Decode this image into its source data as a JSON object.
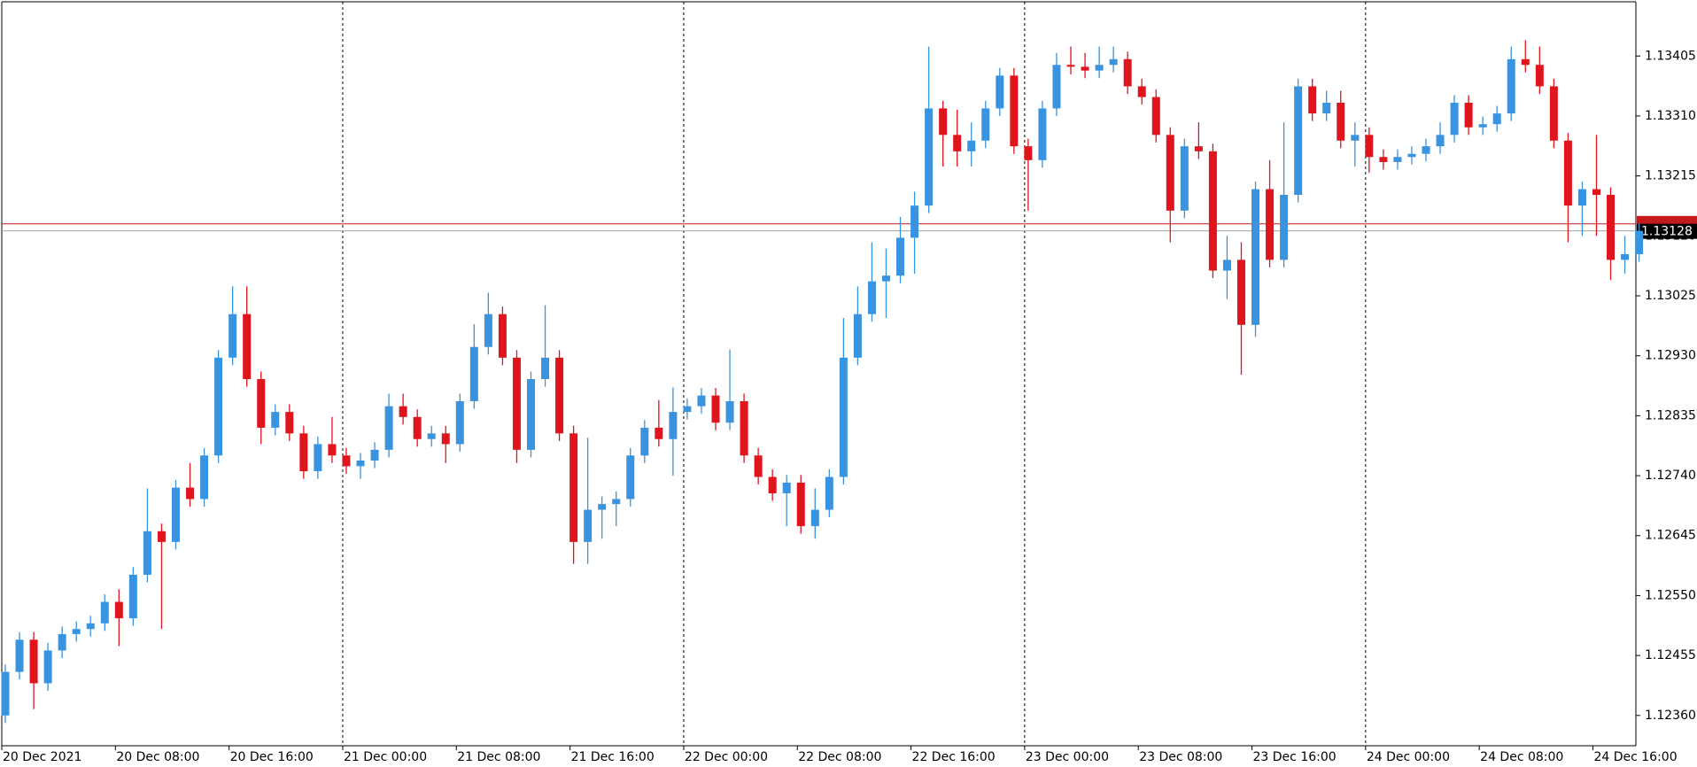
{
  "chart_data": {
    "type": "candlestick",
    "categories": [
      "20 Dec 2021",
      null,
      null,
      null,
      null,
      null,
      null,
      null,
      "20 Dec 08:00",
      null,
      null,
      null,
      null,
      null,
      null,
      null,
      "20 Dec 16:00",
      null,
      null,
      null,
      null,
      null,
      null,
      null,
      "21 Dec 00:00",
      null,
      null,
      null,
      null,
      null,
      null,
      null,
      "21 Dec 08:00",
      null,
      null,
      null,
      null,
      null,
      null,
      null,
      "21 Dec 16:00",
      null,
      null,
      null,
      null,
      null,
      null,
      null,
      "22 Dec 00:00",
      null,
      null,
      null,
      null,
      null,
      null,
      null,
      "22 Dec 08:00",
      null,
      null,
      null,
      null,
      null,
      null,
      null,
      "22 Dec 16:00",
      null,
      null,
      null,
      null,
      null,
      null,
      null,
      "23 Dec 00:00",
      null,
      null,
      null,
      null,
      null,
      null,
      null,
      "23 Dec 08:00",
      null,
      null,
      null,
      null,
      null,
      null,
      null,
      "23 Dec 16:00",
      null,
      null,
      null,
      null,
      null,
      null,
      null,
      "24 Dec 00:00",
      null,
      null,
      null,
      null,
      null,
      null,
      null,
      "24 Dec 08:00",
      null,
      null,
      null,
      null,
      null,
      null,
      null,
      "24 Dec 16:00",
      null,
      null,
      null
    ],
    "open": [
      1.1236,
      1.12429,
      1.1248,
      1.12411,
      1.12463,
      1.12489,
      1.12497,
      1.12506,
      1.1254,
      1.12514,
      1.12583,
      1.12652,
      1.12635,
      1.12721,
      1.12703,
      1.12772,
      1.12927,
      1.12996,
      1.12893,
      1.12816,
      1.12841,
      1.12807,
      1.12747,
      1.1279,
      1.12772,
      1.12755,
      1.12764,
      1.12781,
      1.1285,
      1.12833,
      1.12798,
      1.12807,
      1.1279,
      1.12858,
      1.12944,
      1.12996,
      1.12927,
      1.12781,
      1.12893,
      1.12927,
      1.12807,
      1.12635,
      1.12686,
      1.12695,
      1.12703,
      1.12772,
      1.12816,
      1.12798,
      1.12841,
      1.1285,
      1.12867,
      1.12824,
      1.12858,
      1.12772,
      1.12738,
      1.12712,
      1.12729,
      1.1266,
      1.12686,
      1.12738,
      1.12927,
      1.12996,
      1.13048,
      1.13057,
      1.13117,
      1.13168,
      1.13322,
      1.1328,
      1.13254,
      1.13271,
      1.13322,
      1.13374,
      1.13262,
      1.1324,
      1.13322,
      1.13391,
      1.13388,
      1.13382,
      1.13391,
      1.134,
      1.13357,
      1.1334,
      1.1328,
      1.1316,
      1.13262,
      1.13254,
      1.13065,
      1.13082,
      1.12979,
      1.13194,
      1.13082,
      1.13185,
      1.13357,
      1.13314,
      1.13331,
      1.13271,
      1.1328,
      1.13245,
      1.13237,
      1.13245,
      1.1325,
      1.13262,
      1.1328,
      1.13331,
      1.13292,
      1.13297,
      1.13314,
      1.134,
      1.13391,
      1.13357,
      1.13271,
      1.13168,
      1.13194,
      1.13185,
      1.13082,
      1.13091
    ],
    "high": [
      1.12441,
      1.12492,
      1.12492,
      1.12475,
      1.12501,
      1.12509,
      1.12518,
      1.12552,
      1.1256,
      1.12595,
      1.1272,
      1.12664,
      1.12733,
      1.1276,
      1.12784,
      1.12939,
      1.1304,
      1.1304,
      1.12905,
      1.12853,
      1.12853,
      1.12819,
      1.12802,
      1.12833,
      1.12784,
      1.12776,
      1.12793,
      1.1287,
      1.1287,
      1.12845,
      1.12819,
      1.12819,
      1.1287,
      1.1298,
      1.1303,
      1.13008,
      1.12939,
      1.12905,
      1.1301,
      1.12939,
      1.12819,
      1.128,
      1.12707,
      1.12715,
      1.12784,
      1.12828,
      1.1286,
      1.1288,
      1.12862,
      1.12879,
      1.12879,
      1.1294,
      1.1287,
      1.12784,
      1.1275,
      1.12741,
      1.12741,
      1.1272,
      1.1275,
      1.1299,
      1.1304,
      1.1311,
      1.131,
      1.1315,
      1.1319,
      1.1342,
      1.13334,
      1.1332,
      1.133,
      1.13334,
      1.13386,
      1.13386,
      1.13274,
      1.13334,
      1.1341,
      1.1342,
      1.1341,
      1.1342,
      1.1342,
      1.13412,
      1.13369,
      1.13352,
      1.13292,
      1.13274,
      1.133,
      1.13266,
      1.1312,
      1.1311,
      1.13206,
      1.1324,
      1.133,
      1.13369,
      1.13369,
      1.1335,
      1.1335,
      1.133,
      1.13292,
      1.13257,
      1.13257,
      1.13262,
      1.13274,
      1.133,
      1.13343,
      1.13343,
      1.13309,
      1.13326,
      1.1342,
      1.1343,
      1.1342,
      1.13369,
      1.13283,
      1.13206,
      1.1328,
      1.13197,
      1.1312,
      1.1314
    ],
    "low": [
      1.12348,
      1.12417,
      1.1237,
      1.12399,
      1.12451,
      1.12477,
      1.12485,
      1.12494,
      1.1247,
      1.12502,
      1.12571,
      1.12497,
      1.12623,
      1.12691,
      1.12691,
      1.1276,
      1.12915,
      1.12881,
      1.1279,
      1.12804,
      1.12795,
      1.12735,
      1.12735,
      1.1276,
      1.12743,
      1.12735,
      1.12752,
      1.12769,
      1.12821,
      1.12786,
      1.12786,
      1.1276,
      1.12778,
      1.12846,
      1.12932,
      1.12915,
      1.1276,
      1.12769,
      1.12881,
      1.12795,
      1.126,
      1.126,
      1.1264,
      1.1266,
      1.12691,
      1.1276,
      1.12786,
      1.1274,
      1.12829,
      1.12838,
      1.12812,
      1.12812,
      1.1276,
      1.12726,
      1.127,
      1.1266,
      1.12648,
      1.1264,
      1.12674,
      1.12726,
      1.12915,
      1.12984,
      1.1299,
      1.13045,
      1.1306,
      1.13156,
      1.1323,
      1.1323,
      1.1323,
      1.13259,
      1.1331,
      1.1325,
      1.1316,
      1.13228,
      1.1331,
      1.13376,
      1.1337,
      1.1337,
      1.13379,
      1.13345,
      1.13328,
      1.13268,
      1.1311,
      1.13148,
      1.13242,
      1.13053,
      1.1302,
      1.129,
      1.1296,
      1.1307,
      1.1307,
      1.13173,
      1.13302,
      1.13302,
      1.13259,
      1.1323,
      1.1322,
      1.13225,
      1.13225,
      1.13233,
      1.13238,
      1.1325,
      1.13268,
      1.1328,
      1.1328,
      1.13285,
      1.13302,
      1.13379,
      1.13345,
      1.13259,
      1.1311,
      1.1312,
      1.1312,
      1.1305,
      1.1306,
      1.13079
    ],
    "close": [
      1.12429,
      1.1248,
      1.12411,
      1.12463,
      1.12489,
      1.12497,
      1.12506,
      1.1254,
      1.12514,
      1.12583,
      1.12652,
      1.12635,
      1.12721,
      1.12703,
      1.12772,
      1.12927,
      1.12996,
      1.12893,
      1.12816,
      1.12841,
      1.12807,
      1.12747,
      1.1279,
      1.12772,
      1.12755,
      1.12764,
      1.12781,
      1.1285,
      1.12833,
      1.12798,
      1.12807,
      1.1279,
      1.12858,
      1.12944,
      1.12996,
      1.12927,
      1.12781,
      1.12893,
      1.12927,
      1.12807,
      1.12635,
      1.12686,
      1.12695,
      1.12703,
      1.12772,
      1.12816,
      1.12798,
      1.12841,
      1.1285,
      1.12867,
      1.12824,
      1.12858,
      1.12772,
      1.12738,
      1.12712,
      1.12729,
      1.1266,
      1.12686,
      1.12738,
      1.12927,
      1.12996,
      1.13048,
      1.13057,
      1.13117,
      1.13168,
      1.13322,
      1.1328,
      1.13254,
      1.13271,
      1.13322,
      1.13374,
      1.13262,
      1.1324,
      1.13322,
      1.13391,
      1.13388,
      1.13382,
      1.13391,
      1.134,
      1.13357,
      1.1334,
      1.1328,
      1.1316,
      1.13262,
      1.13254,
      1.13065,
      1.13082,
      1.12979,
      1.13194,
      1.13082,
      1.13185,
      1.13357,
      1.13314,
      1.13331,
      1.13271,
      1.1328,
      1.13245,
      1.13237,
      1.13245,
      1.1325,
      1.13262,
      1.1328,
      1.13331,
      1.13292,
      1.13297,
      1.13314,
      1.134,
      1.13391,
      1.13357,
      1.13271,
      1.13168,
      1.13194,
      1.13185,
      1.13082,
      1.13091,
      1.13128
    ],
    "ylim": [
      1.12312,
      1.13491
    ],
    "yticks": [
      {
        "value": 1.1236,
        "label": "1.12360"
      },
      1.12455,
      {
        "value": 1.1255,
        "label": "1.12550"
      },
      1.12645,
      {
        "value": 1.1274,
        "label": "1.12740"
      },
      1.12835,
      {
        "value": 1.1293,
        "label": "1.12930"
      },
      1.13025,
      {
        "value": 1.1312,
        "label": "1.13120"
      },
      1.13215,
      {
        "value": 1.1331,
        "label": "1.13310"
      },
      1.13405
    ],
    "up_color": "#3a93de",
    "down_color": "#e0141c",
    "bid": 1.13128,
    "ask": 1.13139
  }
}
